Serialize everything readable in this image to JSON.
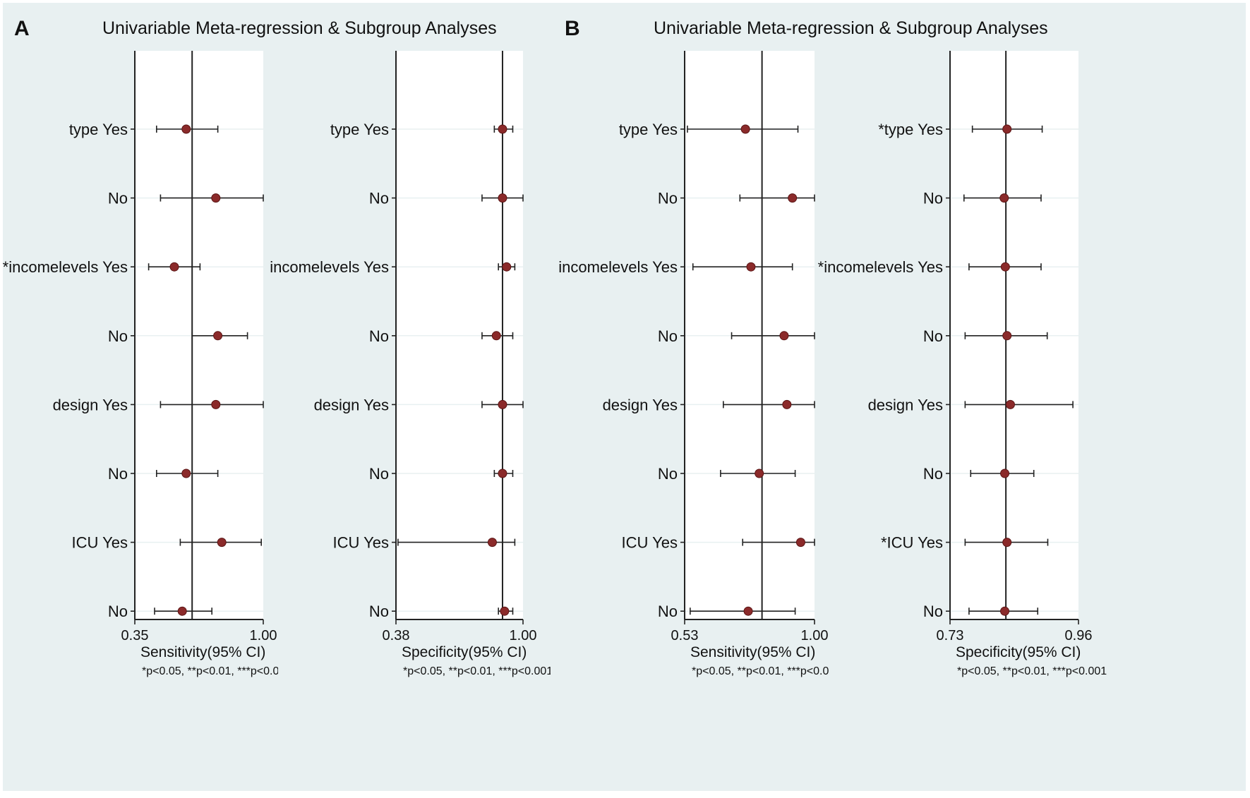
{
  "colors": {
    "background": "#e8f0f1",
    "point": "#8b2a2a",
    "line": "#222222"
  },
  "note": "*p<0.05, **p<0.01, ***p<0.001",
  "panels": [
    {
      "letter": "A",
      "title": "Univariable Meta-regression & Subgroup Analyses"
    },
    {
      "letter": "B",
      "title": "Univariable Meta-regression & Subgroup Analyses"
    }
  ],
  "chart_data": [
    {
      "type": "forest",
      "panel": "A",
      "xlabel": "Sensitivity(95% CI)",
      "xlim": [
        0.35,
        1.0
      ],
      "xticks": [
        "0.35",
        "1.00"
      ],
      "reference": 0.64,
      "labels": [
        "type Yes",
        "No",
        "*incomelevels Yes",
        "No",
        "design Yes",
        "No",
        "ICU Yes",
        "No"
      ],
      "estimate": [
        0.61,
        0.76,
        0.55,
        0.77,
        0.76,
        0.61,
        0.79,
        0.59
      ],
      "lower": [
        0.46,
        0.48,
        0.42,
        0.64,
        0.48,
        0.46,
        0.58,
        0.45
      ],
      "upper": [
        0.77,
        1.0,
        0.68,
        0.92,
        1.0,
        0.77,
        0.99,
        0.74
      ]
    },
    {
      "type": "forest",
      "panel": "A",
      "xlabel": "Specificity(95% CI)",
      "xlim": [
        0.38,
        1.0
      ],
      "xticks": [
        "0.38",
        "1.00"
      ],
      "reference": 0.9,
      "labels": [
        "type Yes",
        "No",
        "incomelevels Yes",
        "No",
        "design Yes",
        "No",
        "ICU Yes",
        "No"
      ],
      "estimate": [
        0.9,
        0.9,
        0.92,
        0.87,
        0.9,
        0.9,
        0.85,
        0.91
      ],
      "lower": [
        0.86,
        0.8,
        0.88,
        0.8,
        0.8,
        0.86,
        0.39,
        0.88
      ],
      "upper": [
        0.95,
        1.0,
        0.96,
        0.95,
        1.0,
        0.95,
        0.96,
        0.95
      ]
    },
    {
      "type": "forest",
      "panel": "B",
      "xlabel": "Sensitivity(95% CI)",
      "xlim": [
        0.53,
        1.0
      ],
      "xticks": [
        "0.53",
        "1.00"
      ],
      "reference": 0.81,
      "labels": [
        "type Yes",
        "No",
        "incomelevels Yes",
        "No",
        "design Yes",
        "No",
        "ICU Yes",
        "No"
      ],
      "estimate": [
        0.75,
        0.92,
        0.77,
        0.89,
        0.9,
        0.8,
        0.95,
        0.76
      ],
      "lower": [
        0.54,
        0.73,
        0.56,
        0.7,
        0.67,
        0.66,
        0.74,
        0.55
      ],
      "upper": [
        0.94,
        1.0,
        0.92,
        1.0,
        1.0,
        0.93,
        1.0,
        0.93
      ]
    },
    {
      "type": "forest",
      "panel": "B",
      "xlabel": "Specificity(95% CI)",
      "xlim": [
        0.73,
        0.96
      ],
      "xticks": [
        "0.73",
        "0.96"
      ],
      "reference": 0.83,
      "labels": [
        "*type Yes",
        "No",
        "*incomelevels Yes",
        "No",
        "design Yes",
        "No",
        "*ICU Yes",
        "No"
      ],
      "estimate": [
        0.832,
        0.827,
        0.829,
        0.832,
        0.838,
        0.828,
        0.832,
        0.828
      ],
      "lower": [
        0.77,
        0.755,
        0.764,
        0.757,
        0.757,
        0.767,
        0.757,
        0.764
      ],
      "upper": [
        0.895,
        0.893,
        0.893,
        0.904,
        0.95,
        0.88,
        0.905,
        0.887
      ]
    }
  ]
}
